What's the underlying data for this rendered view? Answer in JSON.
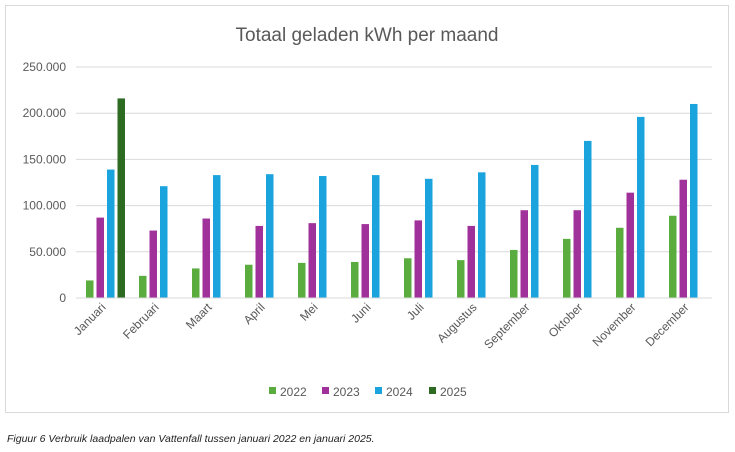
{
  "chart_data": {
    "type": "bar",
    "title": "Totaal geladen kWh per maand",
    "xlabel": "",
    "ylabel": "",
    "ylim": [
      0,
      250000
    ],
    "yticks": [
      0,
      50000,
      100000,
      150000,
      200000,
      250000
    ],
    "ytick_labels": [
      "0",
      "50.000",
      "100.000",
      "150.000",
      "200.000",
      "250.000"
    ],
    "categories": [
      "Januari",
      "Februari",
      "Maart",
      "April",
      "Mei",
      "Juni",
      "Juli",
      "Augustus",
      "September",
      "Oktober",
      "November",
      "December"
    ],
    "series": [
      {
        "name": "2022",
        "color": "#5aac3e",
        "values": [
          19000,
          24000,
          32000,
          36000,
          38000,
          39000,
          43000,
          41000,
          52000,
          64000,
          76000,
          89000
        ]
      },
      {
        "name": "2023",
        "color": "#a0319a",
        "values": [
          87000,
          73000,
          86000,
          78000,
          81000,
          80000,
          84000,
          78000,
          95000,
          95000,
          114000,
          128000
        ]
      },
      {
        "name": "2024",
        "color": "#1aa3dc",
        "values": [
          139000,
          121000,
          133000,
          134000,
          132000,
          133000,
          129000,
          136000,
          144000,
          170000,
          196000,
          210000
        ]
      },
      {
        "name": "2025",
        "color": "#2e6b22",
        "values": [
          216000,
          null,
          null,
          null,
          null,
          null,
          null,
          null,
          null,
          null,
          null,
          null
        ]
      }
    ],
    "grid": true,
    "legend_position": "bottom"
  },
  "caption": "Figuur 6 Verbruik laadpalen van Vattenfall tussen januari 2022 en januari 2025."
}
